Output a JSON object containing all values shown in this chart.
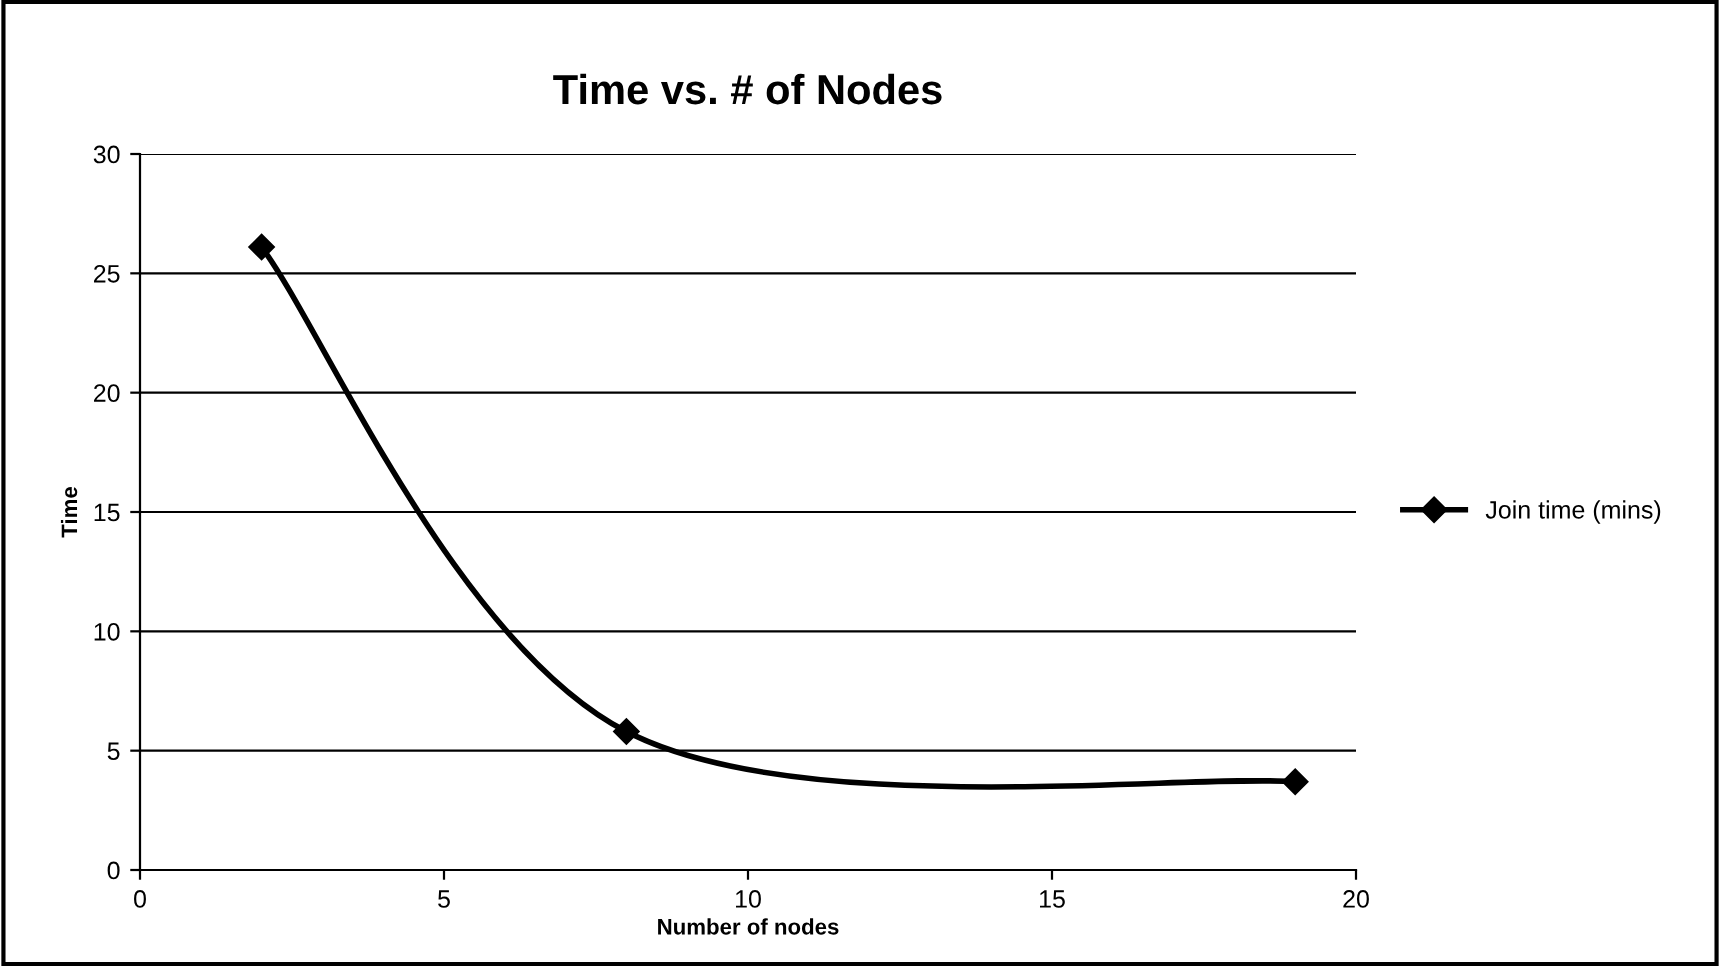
{
  "chart_data": {
    "type": "line",
    "title": "Time vs. # of Nodes",
    "xlabel": "Number of nodes",
    "ylabel": "Time",
    "series": [
      {
        "name": "Join time (mins)",
        "color": "#000000",
        "x": [
          2,
          8,
          19
        ],
        "values": [
          26.1,
          5.8,
          3.7
        ]
      }
    ],
    "xlim": [
      0,
      20
    ],
    "xticks": [
      0,
      5,
      10,
      15,
      20
    ],
    "ylim": [
      0,
      30
    ],
    "yticks": [
      0,
      5,
      10,
      15,
      20,
      25,
      30
    ],
    "grid": "y",
    "legend": "right",
    "marker": "diamond",
    "line_style": "solid"
  }
}
